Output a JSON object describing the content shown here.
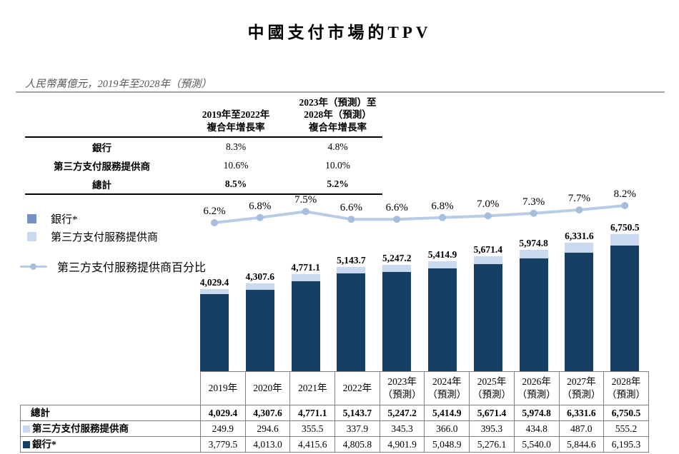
{
  "title": "中國支付市場的TPV",
  "subtitle": "人民幣萬億元，2019年至2028年（預測）",
  "cagr_table": {
    "col1_header_lines": [
      "2019年至2022年",
      "複合年增長率"
    ],
    "col2_header_lines": [
      "2023年（預測）至",
      "2028年（預測）",
      "複合年增長率"
    ],
    "rows": [
      {
        "label": "銀行",
        "values": [
          "8.3%",
          "4.8%"
        ]
      },
      {
        "label": "第三方支付服務提供商",
        "values": [
          "10.6%",
          "10.0%"
        ]
      },
      {
        "label": "總計",
        "values": [
          "8.5%",
          "5.2%"
        ]
      }
    ]
  },
  "legend": {
    "bank_label": "銀行*",
    "third_party_label": "第三方支付服務提供商",
    "pct_line_label": "第三方支付服務提供商百分比"
  },
  "chart_data": {
    "type": "bar",
    "subtype": "stacked-bars-with-line-overlay",
    "title": "中國支付市場的TPV",
    "unit": "人民幣萬億元",
    "categories": [
      "2019年",
      "2020年",
      "2021年",
      "2022年",
      "2023年（預測）",
      "2024年（預測）",
      "2025年（預測）",
      "2026年（預測）",
      "2027年（預測）",
      "2028年（預測）"
    ],
    "series": [
      {
        "name": "銀行*",
        "values": [
          3779.5,
          4013.0,
          4415.6,
          4805.8,
          4901.9,
          5048.9,
          5276.1,
          5540.0,
          5844.6,
          6195.3
        ]
      },
      {
        "name": "第三方支付服務提供商",
        "values": [
          249.9,
          294.6,
          355.5,
          337.9,
          345.3,
          366.0,
          395.3,
          434.8,
          487.0,
          555.2
        ]
      }
    ],
    "totals": [
      4029.4,
      4307.6,
      4771.1,
      5143.7,
      5247.2,
      5414.9,
      5671.4,
      5974.8,
      6331.6,
      6750.5
    ],
    "total_labels": [
      "4,029.4",
      "4,307.6",
      "4,771.1",
      "5,143.7",
      "5,247.2",
      "5,414.9",
      "5,671.4",
      "5,974.8",
      "6,331.6",
      "6,750.5"
    ],
    "line_series": {
      "name": "第三方支付服務提供商百分比",
      "values_pct": [
        6.2,
        6.8,
        7.5,
        6.6,
        6.6,
        6.8,
        7.0,
        7.3,
        7.7,
        8.2
      ],
      "labels": [
        "6.2%",
        "6.8%",
        "7.5%",
        "6.6%",
        "6.6%",
        "6.8%",
        "7.0%",
        "7.3%",
        "7.7%",
        "8.2%"
      ]
    },
    "legend_position": "left",
    "grid": false
  },
  "bottom_table": {
    "year_headers": [
      [
        "2019年"
      ],
      [
        "2020年"
      ],
      [
        "2021年"
      ],
      [
        "2022年"
      ],
      [
        "2023年",
        "（預測）"
      ],
      [
        "2024年",
        "（預測）"
      ],
      [
        "2025年",
        "（預測）"
      ],
      [
        "2026年",
        "（預測）"
      ],
      [
        "2027年",
        "（預測）"
      ],
      [
        "2028年",
        "（預測）"
      ]
    ],
    "rows": [
      {
        "label": "總計",
        "swatch": null,
        "bold": true,
        "values": [
          "4,029.4",
          "4,307.6",
          "4,771.1",
          "5,143.7",
          "5,247.2",
          "5,414.9",
          "5,671.4",
          "5,974.8",
          "6,331.6",
          "6,750.5"
        ]
      },
      {
        "label": "第三方支付服務提供商",
        "swatch": "third_party",
        "bold": false,
        "values": [
          "249.9",
          "294.6",
          "355.5",
          "337.9",
          "345.3",
          "366.0",
          "395.3",
          "434.8",
          "487.0",
          "555.2"
        ]
      },
      {
        "label": "銀行*",
        "swatch": "bank",
        "bold": false,
        "values": [
          "3,779.5",
          "4,013.0",
          "4,415.6",
          "4,805.8",
          "4,901.9",
          "5,048.9",
          "5,276.1",
          "5,540.0",
          "5,844.6",
          "6,195.3"
        ]
      }
    ]
  },
  "colors": {
    "bank": "#173E63",
    "third_party": "#C9DAF0",
    "line": "#B8CCE6",
    "line_marker": "#A6BEDC",
    "legend_bank_swatch": "#7591C3",
    "table_border": "#808080",
    "rule_gray": "#A6A6A6",
    "subtitle_gray": "#595959"
  }
}
